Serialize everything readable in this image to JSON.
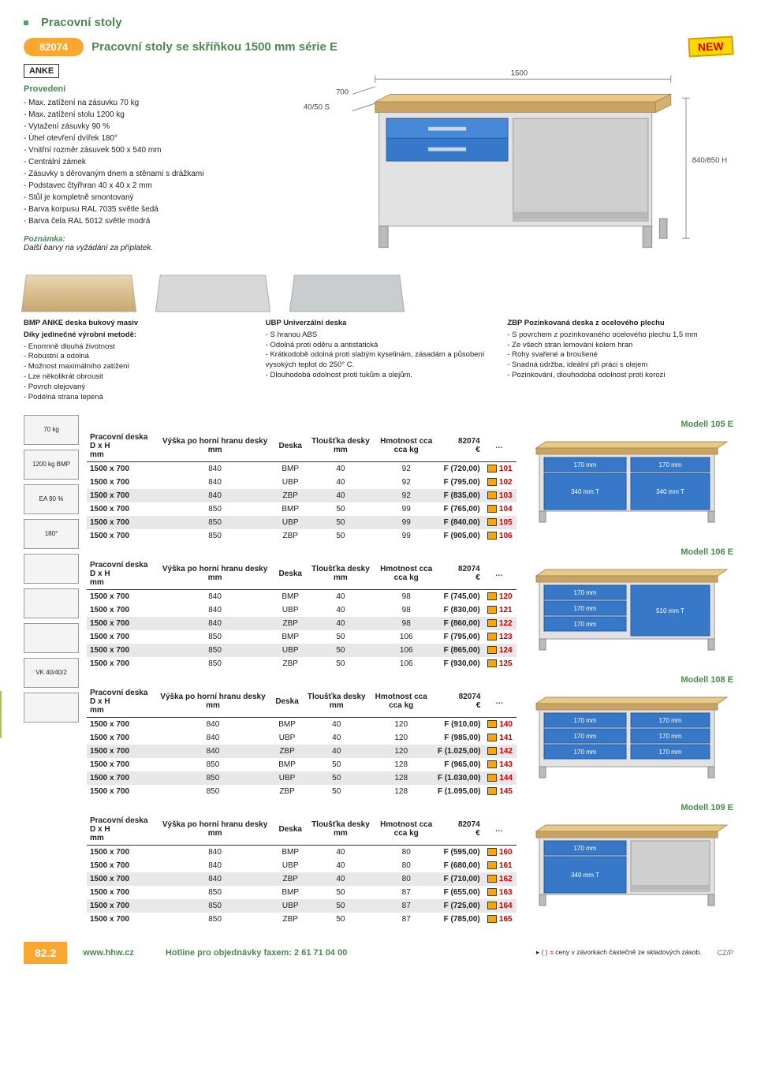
{
  "category": "Pracovní stoly",
  "product_code": "82074",
  "product_title": "Pracovní stoly se skříňkou 1500 mm série E",
  "brand_logo": "ANKE",
  "new_badge": "NEW",
  "spec": {
    "heading": "Provedení",
    "items": [
      "Max. zatížení na zásuvku 70 kg",
      "Max. zatížení stolu 1200 kg",
      "Vytažení zásuvky 90 %",
      "Úhel otevření dvířek 180°",
      "Vnitřní rozměr zásuvek 500 x 540 mm",
      "Centrální zámek",
      "Zásuvky s děrovaným dnem a stěnami s drážkami",
      "Podstavec čtyřhran 40 x 40 x 2 mm",
      "Stůl je kompletně smontovaný",
      "Barva korpusu RAL 7035 světle šedá",
      "Barva čela RAL 5012 světle modrá"
    ],
    "note_heading": "Poznámka:",
    "note_text": "Další barvy na vyžádání za příplatek."
  },
  "dimensions": {
    "width": "1500",
    "depth": "700",
    "height": "840/850 H",
    "thickness": "40/50 S"
  },
  "colors": {
    "wood": "#e8c988",
    "wood_dark": "#c9a362",
    "drawer": "#3878c8",
    "drawer_dark": "#2a5a9a",
    "frame": "#c8c8c8",
    "frame_dark": "#9a9a9a",
    "accent_green": "#4a8850",
    "accent_orange": "#f8a830",
    "sku_red": "#c00"
  },
  "board_descriptions": [
    {
      "title": "BMP ANKE deska bukový masiv",
      "subtitle": "Díky jedinečné výrobní metodě:",
      "lines": [
        "- Enormně dlouhá životnost",
        "- Robustní a odolná",
        "- Možnost maximálního zatížení",
        "- Lze několikrát obrousit",
        "- Povrch olejovaný",
        "- Podélná strana lepená"
      ]
    },
    {
      "title": "UBP Univerzální deska",
      "subtitle": "",
      "lines": [
        "- S hranou ABS",
        "- Odolná proti oděru a antistatická",
        "- Krátkodobě odolná proti slabým kyselinám, zásadám a působení vysokých teplot do 250° C.",
        "- Dlouhodobá odolnost proti tukům a olejům."
      ]
    },
    {
      "title": "ZBP Pozinkovaná deska z ocelového plechu",
      "subtitle": "",
      "lines": [
        "- S povrchem z pozinkovaného ocelového plechu 1,5 mm",
        "- Ze všech stran lemování kolem hran",
        "- Rohy svařené a broušené",
        "- Snadná údržba, ideální při práci s olejem",
        "- Pozinkování, dlouhodobá odolnost proti korozi"
      ]
    }
  ],
  "table_headers": [
    "Pracovní deska D x H mm",
    "Výška po horní hranu desky mm",
    "Deska",
    "Tloušťka desky mm",
    "Hmotnost cca kg",
    "82074 €",
    "…"
  ],
  "models": [
    {
      "name": "Modell 105 E",
      "config": {
        "left": [
          {
            "label": "170 mm"
          },
          {
            "label": "340 mm T"
          }
        ],
        "right": [
          {
            "label": "170 mm"
          },
          {
            "label": "340 mm T"
          }
        ]
      },
      "rows": [
        [
          "1500 x 700",
          "840",
          "BMP",
          "40",
          "92",
          "F (720,00)",
          "101"
        ],
        [
          "1500 x 700",
          "840",
          "UBP",
          "40",
          "92",
          "F (795,00)",
          "102"
        ],
        [
          "1500 x 700",
          "840",
          "ZBP",
          "40",
          "92",
          "F (835,00)",
          "103"
        ],
        [
          "1500 x 700",
          "850",
          "BMP",
          "50",
          "99",
          "F (765,00)",
          "104"
        ],
        [
          "1500 x 700",
          "850",
          "UBP",
          "50",
          "99",
          "F (840,00)",
          "105"
        ],
        [
          "1500 x 700",
          "850",
          "ZBP",
          "50",
          "99",
          "F (905,00)",
          "106"
        ]
      ]
    },
    {
      "name": "Modell 106 E",
      "config": {
        "left": [
          {
            "label": "170 mm"
          },
          {
            "label": "170 mm"
          },
          {
            "label": "170 mm"
          }
        ],
        "right": [
          {
            "label": "510 mm T"
          }
        ]
      },
      "rows": [
        [
          "1500 x 700",
          "840",
          "BMP",
          "40",
          "98",
          "F (745,00)",
          "120"
        ],
        [
          "1500 x 700",
          "840",
          "UBP",
          "40",
          "98",
          "F (830,00)",
          "121"
        ],
        [
          "1500 x 700",
          "840",
          "ZBP",
          "40",
          "98",
          "F (860,00)",
          "122"
        ],
        [
          "1500 x 700",
          "850",
          "BMP",
          "50",
          "106",
          "F (795,00)",
          "123"
        ],
        [
          "1500 x 700",
          "850",
          "UBP",
          "50",
          "106",
          "F (865,00)",
          "124"
        ],
        [
          "1500 x 700",
          "850",
          "ZBP",
          "50",
          "106",
          "F (930,00)",
          "125"
        ]
      ]
    },
    {
      "name": "Modell 108 E",
      "config": {
        "left": [
          {
            "label": "170 mm"
          },
          {
            "label": "170 mm"
          },
          {
            "label": "170 mm"
          }
        ],
        "right": [
          {
            "label": "170 mm"
          },
          {
            "label": "170 mm"
          },
          {
            "label": "170 mm"
          }
        ]
      },
      "rows": [
        [
          "1500 x 700",
          "840",
          "BMP",
          "40",
          "120",
          "F (910,00)",
          "140"
        ],
        [
          "1500 x 700",
          "840",
          "UBP",
          "40",
          "120",
          "F (985,00)",
          "141"
        ],
        [
          "1500 x 700",
          "840",
          "ZBP",
          "40",
          "120",
          "F (1.025,00)",
          "142"
        ],
        [
          "1500 x 700",
          "850",
          "BMP",
          "50",
          "128",
          "F (965,00)",
          "143"
        ],
        [
          "1500 x 700",
          "850",
          "UBP",
          "50",
          "128",
          "F (1.030,00)",
          "144"
        ],
        [
          "1500 x 700",
          "850",
          "ZBP",
          "50",
          "128",
          "F (1.095,00)",
          "145"
        ]
      ]
    },
    {
      "name": "Modell 109 E",
      "config": {
        "left": [
          {
            "label": "170 mm"
          },
          {
            "label": "340 mm T"
          }
        ],
        "right": "open"
      },
      "rows": [
        [
          "1500 x 700",
          "840",
          "BMP",
          "40",
          "80",
          "F (595,00)",
          "160"
        ],
        [
          "1500 x 700",
          "840",
          "UBP",
          "40",
          "80",
          "F (680,00)",
          "161"
        ],
        [
          "1500 x 700",
          "840",
          "ZBP",
          "40",
          "80",
          "F (710,00)",
          "162"
        ],
        [
          "1500 x 700",
          "850",
          "BMP",
          "50",
          "87",
          "F (655,00)",
          "163"
        ],
        [
          "1500 x 700",
          "850",
          "UBP",
          "50",
          "87",
          "F (725,00)",
          "164"
        ],
        [
          "1500 x 700",
          "850",
          "ZBP",
          "50",
          "87",
          "F (785,00)",
          "165"
        ]
      ]
    }
  ],
  "side_icons": [
    {
      "label": "70 kg"
    },
    {
      "label": "1200 kg BMP"
    },
    {
      "label": "EA 90 %"
    },
    {
      "label": "180°"
    },
    {
      "label": ""
    },
    {
      "label": ""
    },
    {
      "label": ""
    },
    {
      "label": "VK 40/40/2"
    },
    {
      "label": ""
    }
  ],
  "side_tab": "8",
  "footer": {
    "page": "82.2",
    "url": "www.hhw.cz",
    "hotline": "Hotline pro objednávky faxem: 2 61 71 04 00",
    "note_prefix": "( ) = ",
    "note_text": "ceny v závorkách částečně ze skladových zásob.",
    "czp": "CZ/P"
  }
}
